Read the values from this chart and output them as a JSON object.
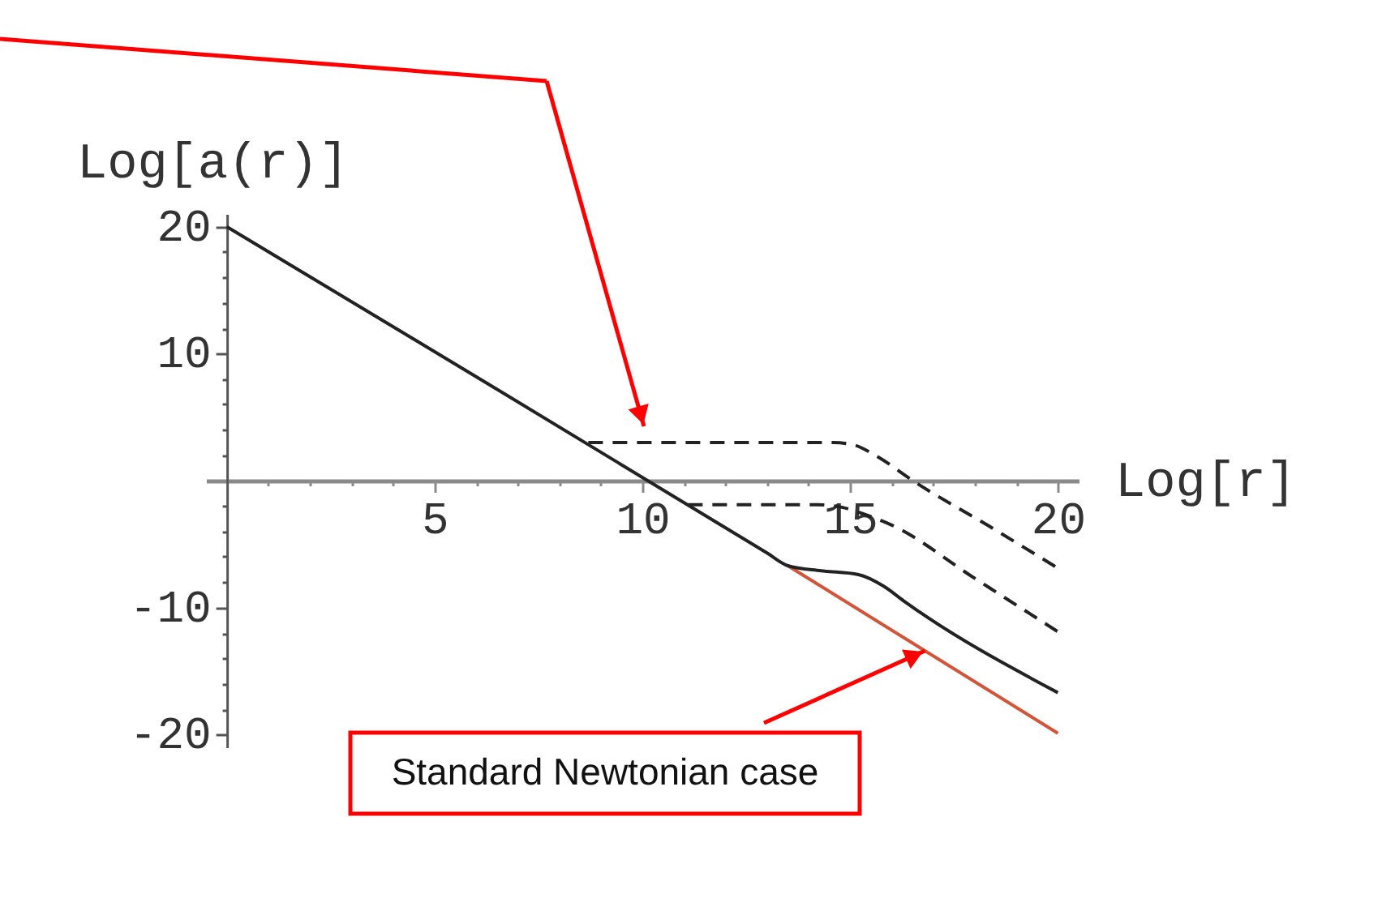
{
  "chart_data": {
    "type": "line",
    "xlabel": "Log[r]",
    "ylabel": "Log[a(r)]",
    "xlim": [
      -0.5,
      20.5
    ],
    "ylim": [
      -21,
      21
    ],
    "xticks": [
      {
        "value": 1,
        "label": null
      },
      {
        "value": 2,
        "label": null
      },
      {
        "value": 3,
        "label": null
      },
      {
        "value": 4,
        "label": null
      },
      5,
      {
        "value": 6,
        "label": null
      },
      {
        "value": 7,
        "label": null
      },
      {
        "value": 8,
        "label": null
      },
      {
        "value": 9,
        "label": null
      },
      10,
      {
        "value": 11,
        "label": null
      },
      {
        "value": 12,
        "label": null
      },
      {
        "value": 13,
        "label": null
      },
      {
        "value": 14,
        "label": null
      },
      15,
      {
        "value": 16,
        "label": null
      },
      {
        "value": 17,
        "label": null
      },
      {
        "value": 18,
        "label": null
      },
      {
        "value": 19,
        "label": null
      },
      20
    ],
    "yticks": [
      -20,
      {
        "value": -18,
        "label": null
      },
      {
        "value": -16,
        "label": null
      },
      {
        "value": -14,
        "label": null
      },
      {
        "value": -12,
        "label": null
      },
      -10,
      {
        "value": -8,
        "label": null
      },
      {
        "value": -6,
        "label": null
      },
      {
        "value": -4,
        "label": null
      },
      {
        "value": -2,
        "label": null
      },
      {
        "value": 2,
        "label": null
      },
      {
        "value": 4,
        "label": null
      },
      {
        "value": 6,
        "label": null
      },
      {
        "value": 8,
        "label": null
      },
      10,
      {
        "value": 12,
        "label": null
      },
      {
        "value": 14,
        "label": null
      },
      {
        "value": 16,
        "label": null
      },
      {
        "value": 18,
        "label": null
      },
      20
    ],
    "grid": false,
    "series": [
      {
        "color": "#d2553a",
        "line_style": "solid",
        "x": [
          13.5,
          20
        ],
        "values": [
          -6.7,
          -19.9
        ]
      },
      {
        "color": "#222222",
        "line_style": "solid",
        "x": [
          0,
          6.5,
          13,
          13.5,
          14.3,
          15.2,
          15.8,
          16.3,
          20
        ],
        "values": [
          20,
          7.2,
          -5.7,
          -6.7,
          -7.1,
          -7.4,
          -8.3,
          -9.5,
          -16.7
        ]
      },
      {
        "color": "#222222",
        "line_style": "dashed",
        "x": [
          11.1,
          14.2,
          14.8,
          15.3,
          16,
          18,
          20
        ],
        "values": [
          -1.9,
          -1.9,
          -2.1,
          -2.6,
          -3.5,
          -7.7,
          -11.9
        ]
      },
      {
        "color": "#222222",
        "line_style": "dashed",
        "x": [
          8.7,
          14.6,
          15.1,
          15.6,
          16.6,
          18.3,
          20
        ],
        "values": [
          3.0,
          3.0,
          2.8,
          2.0,
          -0.2,
          -3.5,
          -6.9
        ]
      }
    ],
    "annotations": [
      {
        "text": "Standard Newtonian case",
        "x": 16.8,
        "y": -13.4
      }
    ]
  }
}
